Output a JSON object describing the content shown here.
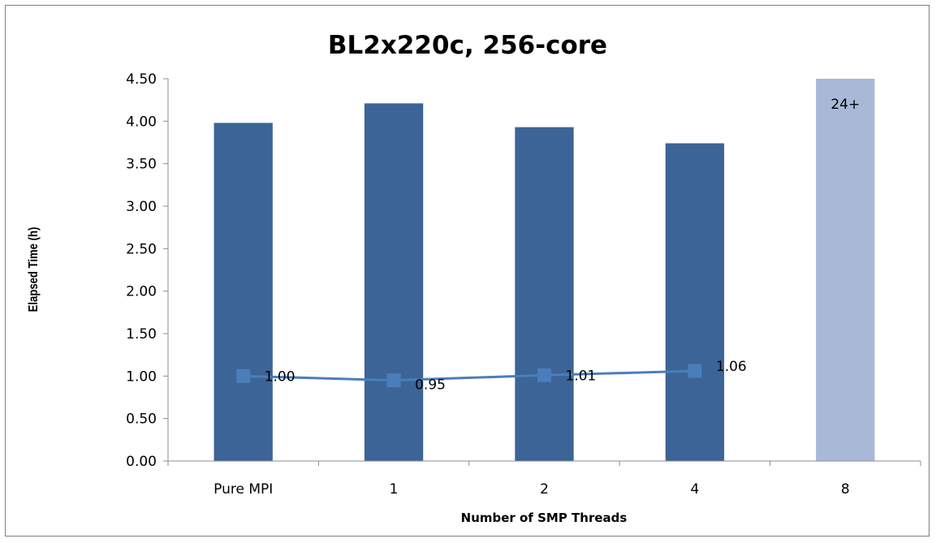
{
  "chart_data": {
    "type": "bar",
    "title": "BL2x220c, 256-core",
    "xlabel": "Number of SMP Threads",
    "ylabel": "Elapsed Time (h)",
    "ylim": [
      0,
      4.5
    ],
    "yticks": [
      "0.00",
      "0.50",
      "1.00",
      "1.50",
      "2.00",
      "2.50",
      "3.00",
      "3.50",
      "4.00",
      "4.50"
    ],
    "categories": [
      "Pure MPI",
      "1",
      "2",
      "4",
      "8"
    ],
    "bars": {
      "values": [
        3.98,
        4.21,
        3.93,
        3.74,
        4.5
      ],
      "colors": [
        "#3c6496",
        "#3c6496",
        "#3c6496",
        "#3c6496",
        "#a7b9d7"
      ],
      "labels": [
        "",
        "",
        "",
        "",
        "24+"
      ]
    },
    "line": {
      "values": [
        1.0,
        0.95,
        1.01,
        1.06
      ],
      "labels": [
        "1.00",
        "0.95",
        "1.01",
        "1.06"
      ],
      "color": "#4a7ebb"
    },
    "grid": false,
    "legend": "none"
  }
}
